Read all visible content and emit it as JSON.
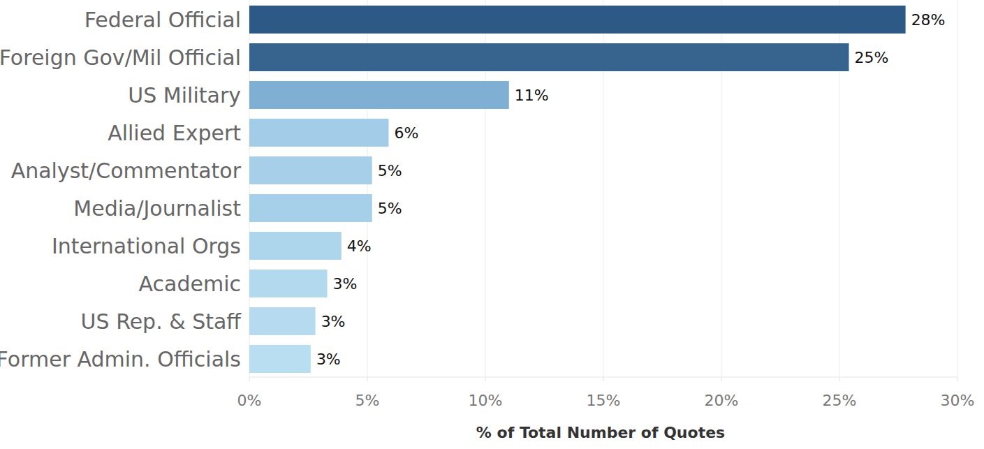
{
  "chart_data": {
    "type": "bar",
    "orientation": "horizontal",
    "categories": [
      "Federal Official",
      "Foreign Gov/Mil Official",
      "US Military",
      "Allied Expert",
      "Analyst/Commentator",
      "Media/Journalist",
      "International Orgs",
      "Academic",
      "US Rep. & Staff",
      "Former Admin. Officials"
    ],
    "values": [
      27.8,
      25.4,
      11.0,
      5.9,
      5.2,
      5.2,
      3.9,
      3.3,
      2.8,
      2.6
    ],
    "value_labels": [
      "28%",
      "25%",
      "11%",
      "6%",
      "5%",
      "5%",
      "4%",
      "3%",
      "3%",
      "3%"
    ],
    "colors": [
      "#2c5985",
      "#37648f",
      "#7fb0d4",
      "#a3cce8",
      "#a8cfe9",
      "#a6d0e9",
      "#add5ec",
      "#b3d9ee",
      "#b6dbf0",
      "#b9ddf1"
    ],
    "xlabel": "% of Total Number of Quotes",
    "xlim": [
      0,
      30
    ],
    "xticks": [
      {
        "value": 0,
        "label": "0%"
      },
      {
        "value": 5,
        "label": "5%"
      },
      {
        "value": 10,
        "label": "10%"
      },
      {
        "value": 15,
        "label": "15%"
      },
      {
        "value": 20,
        "label": "20%"
      },
      {
        "value": 25,
        "label": "25%"
      },
      {
        "value": 30,
        "label": "30%"
      }
    ],
    "grid": true,
    "data_labels": true
  }
}
